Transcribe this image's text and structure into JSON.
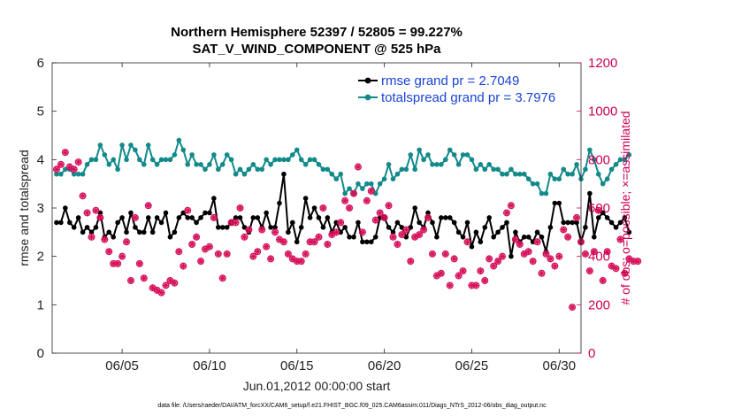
{
  "chart_data": {
    "type": "line",
    "title": "Northern Hemisphere 52397 / 52805 = 99.227%",
    "subtitle": "SAT_V_WIND_COMPONENT @ 525 hPa",
    "xlabel": "Jun.01,2012 00:00:00 start",
    "ylabel": "rmse and totalspread",
    "ylabel_right": "# of obs: o=possible; ×=assimilated",
    "footer": "data file: /Users/raeder/DAI/ATM_forcXX/CAM6_setup/f.e21.FHIST_BGC.f09_025.CAM6assim.011/Diags_NTrS_2012-06/obs_diag_output.nc",
    "xlim": [
      1,
      31.25
    ],
    "ylim": [
      0,
      6
    ],
    "ylim_right": [
      0,
      1200
    ],
    "x_ticks": [
      5,
      10,
      15,
      20,
      25,
      30
    ],
    "x_tick_labels": [
      "06/05",
      "06/10",
      "06/15",
      "06/20",
      "06/25",
      "06/30"
    ],
    "y_ticks": [
      0,
      1,
      2,
      3,
      4,
      5,
      6
    ],
    "y_tick_labels": [
      "0",
      "1",
      "2",
      "3",
      "4",
      "5",
      "6"
    ],
    "y_right_ticks": [
      0,
      200,
      400,
      600,
      800,
      1000,
      1200
    ],
    "y_right_tick_labels": [
      "0",
      "200",
      "400",
      "600",
      "800",
      "1000",
      "1200"
    ],
    "x_start": 1.25,
    "x_step": 0.25,
    "series": [
      {
        "name": "rmse grand pr = 2.7049",
        "color": "#000000",
        "marker": "circle",
        "axis": "left",
        "values": [
          2.7,
          2.7,
          3.0,
          2.7,
          2.6,
          2.8,
          2.5,
          2.6,
          2.5,
          2.6,
          2.9,
          2.4,
          2.5,
          2.4,
          2.7,
          2.8,
          2.5,
          2.9,
          2.6,
          2.5,
          2.5,
          2.8,
          2.5,
          2.8,
          2.7,
          2.9,
          2.4,
          2.5,
          2.8,
          2.9,
          2.8,
          2.8,
          2.7,
          2.8,
          2.9,
          2.9,
          3.2,
          2.6,
          2.6,
          2.6,
          2.7,
          2.8,
          2.8,
          2.6,
          2.5,
          2.8,
          2.8,
          2.6,
          2.9,
          2.6,
          2.6,
          3.1,
          3.7,
          2.5,
          2.7,
          2.3,
          2.6,
          3.2,
          2.8,
          3.0,
          2.8,
          2.6,
          2.8,
          2.5,
          2.7,
          2.5,
          2.6,
          2.4,
          2.4,
          2.7,
          2.3,
          2.3,
          2.3,
          2.4,
          2.8,
          2.8,
          2.6,
          2.5,
          2.7,
          2.6,
          2.4,
          2.6,
          3.0,
          2.7,
          2.6,
          2.9,
          2.7,
          2.4,
          2.8,
          2.8,
          2.8,
          2.7,
          2.5,
          2.4,
          2.7,
          2.2,
          2.5,
          2.3,
          2.6,
          2.8,
          2.4,
          2.5,
          2.6,
          2.7,
          2.0,
          2.5,
          2.3,
          2.4,
          2.4,
          2.3,
          2.5,
          2.4,
          2.1,
          2.6,
          3.1,
          3.1,
          2.7,
          2.7,
          2.7,
          2.7,
          2.3,
          2.6,
          3.3,
          2.4,
          2.8,
          2.9,
          2.8,
          2.7,
          2.6,
          2.7,
          2.8,
          2.5
        ]
      },
      {
        "name": "totalspread grand pr = 3.7976",
        "color": "#138a8a",
        "marker": "circle",
        "axis": "left",
        "values": [
          3.7,
          3.7,
          3.8,
          3.8,
          3.7,
          3.7,
          3.7,
          3.9,
          4.0,
          4.0,
          4.3,
          4.1,
          3.9,
          4.0,
          3.8,
          4.3,
          4.0,
          4.3,
          4.2,
          4.0,
          3.9,
          4.3,
          4.0,
          3.9,
          4.0,
          4.0,
          4.0,
          4.1,
          4.4,
          4.2,
          3.9,
          4.1,
          3.9,
          3.9,
          3.8,
          3.9,
          4.1,
          3.8,
          3.9,
          4.1,
          4.0,
          3.7,
          3.8,
          3.7,
          3.8,
          3.9,
          3.8,
          3.8,
          4.0,
          3.9,
          4.0,
          4.0,
          4.0,
          4.0,
          4.1,
          4.2,
          4.0,
          3.9,
          4.0,
          4.0,
          3.9,
          3.8,
          3.8,
          3.7,
          3.6,
          3.7,
          3.3,
          3.4,
          3.3,
          3.5,
          3.4,
          3.5,
          3.5,
          3.3,
          3.5,
          3.6,
          3.9,
          3.6,
          3.7,
          3.8,
          3.8,
          4.1,
          3.8,
          4.2,
          4.0,
          4.1,
          3.9,
          3.9,
          3.9,
          4.0,
          4.2,
          4.1,
          3.9,
          4.1,
          4.1,
          4.0,
          3.8,
          3.9,
          3.8,
          3.9,
          3.8,
          3.8,
          3.7,
          3.7,
          3.8,
          3.7,
          3.7,
          3.7,
          3.6,
          3.5,
          3.5,
          3.3,
          3.3,
          3.7,
          3.6,
          3.6,
          3.8,
          3.7,
          3.7,
          3.9,
          3.6,
          3.8,
          4.2,
          4.0,
          3.7,
          3.5,
          3.6,
          3.8,
          3.9,
          4.0,
          4.0,
          4.1
        ]
      }
    ],
    "obs": {
      "axis": "right",
      "color": "#d6105a",
      "marker_possible": "o",
      "marker_assimilated": "*",
      "values": [
        760,
        780,
        830,
        770,
        760,
        790,
        650,
        580,
        480,
        590,
        560,
        470,
        420,
        370,
        370,
        400,
        460,
        300,
        560,
        370,
        310,
        610,
        270,
        260,
        250,
        280,
        300,
        290,
        420,
        360,
        590,
        450,
        480,
        380,
        430,
        440,
        560,
        410,
        310,
        410,
        540,
        540,
        600,
        480,
        510,
        400,
        420,
        510,
        440,
        390,
        500,
        470,
        460,
        410,
        390,
        380,
        380,
        410,
        460,
        460,
        480,
        600,
        450,
        490,
        500,
        540,
        630,
        600,
        660,
        770,
        500,
        630,
        670,
        550,
        580,
        560,
        610,
        480,
        450,
        490,
        510,
        380,
        480,
        490,
        510,
        560,
        410,
        320,
        330,
        410,
        280,
        390,
        320,
        340,
        460,
        280,
        280,
        340,
        300,
        390,
        360,
        380,
        400,
        580,
        610,
        470,
        450,
        410,
        420,
        380,
        460,
        330,
        410,
        390,
        360,
        400,
        510,
        480,
        190,
        560,
        460,
        410,
        340,
        420,
        590,
        300,
        420,
        360,
        350,
        470,
        330,
        390,
        380,
        380
      ]
    }
  }
}
